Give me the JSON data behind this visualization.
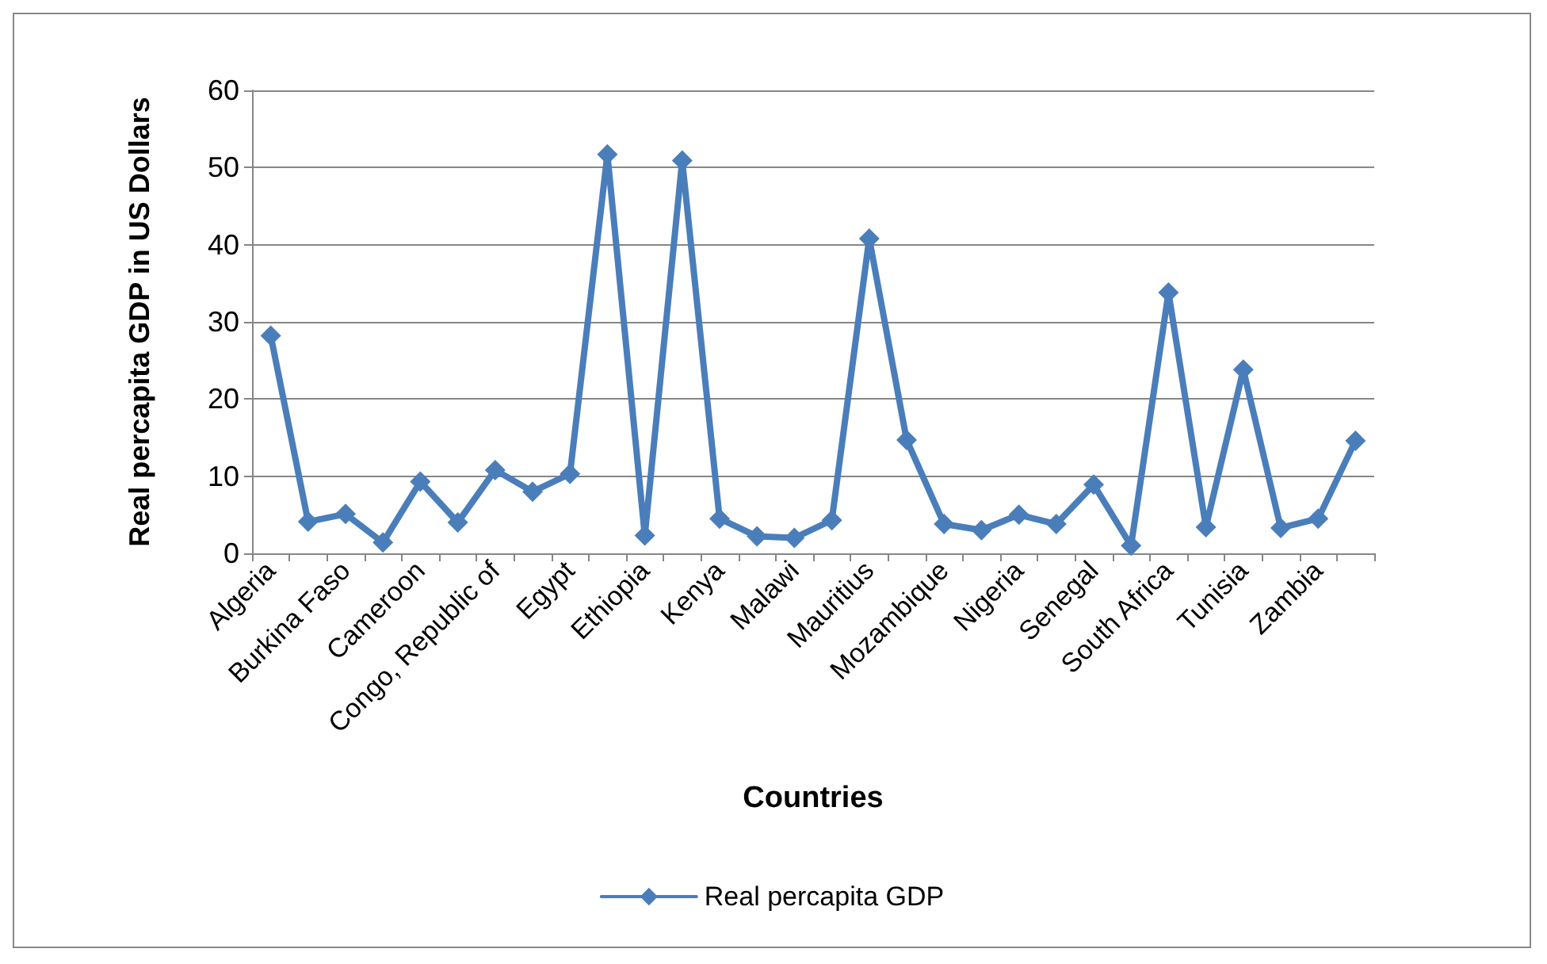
{
  "chart_data": {
    "type": "line",
    "xlabel": "Countries",
    "ylabel": "Real percapita GDP in US Dollars",
    "categories": [
      "Algeria",
      null,
      "Burkina Faso",
      null,
      "Cameroon",
      null,
      "Congo, Republic of",
      null,
      "Egypt",
      null,
      "Ethiopia",
      null,
      "Kenya",
      null,
      "Malawi",
      null,
      "Mauritius",
      null,
      "Mozambique",
      null,
      "Nigeria",
      null,
      "Senegal",
      null,
      "South Africa",
      null,
      "Tunisia",
      null,
      "Zambia",
      null
    ],
    "series": [
      {
        "name": "Real percapita GDP",
        "color": "#4a7ebb",
        "values": [
          28.2,
          4.1,
          5.1,
          1.4,
          9.3,
          4.0,
          10.8,
          8.0,
          10.3,
          51.7,
          2.3,
          50.9,
          4.5,
          2.2,
          2.0,
          4.3,
          40.8,
          14.7,
          3.8,
          3.0,
          5.0,
          3.8,
          8.9,
          1.0,
          33.8,
          3.4,
          23.8,
          3.3,
          4.5,
          14.6
        ]
      }
    ],
    "ylim": [
      0,
      60
    ],
    "yticks": [
      0,
      10,
      20,
      30,
      40,
      50,
      60
    ],
    "grid": "y",
    "legend": "bottom",
    "marker": "diamond",
    "line_style": "solid"
  }
}
